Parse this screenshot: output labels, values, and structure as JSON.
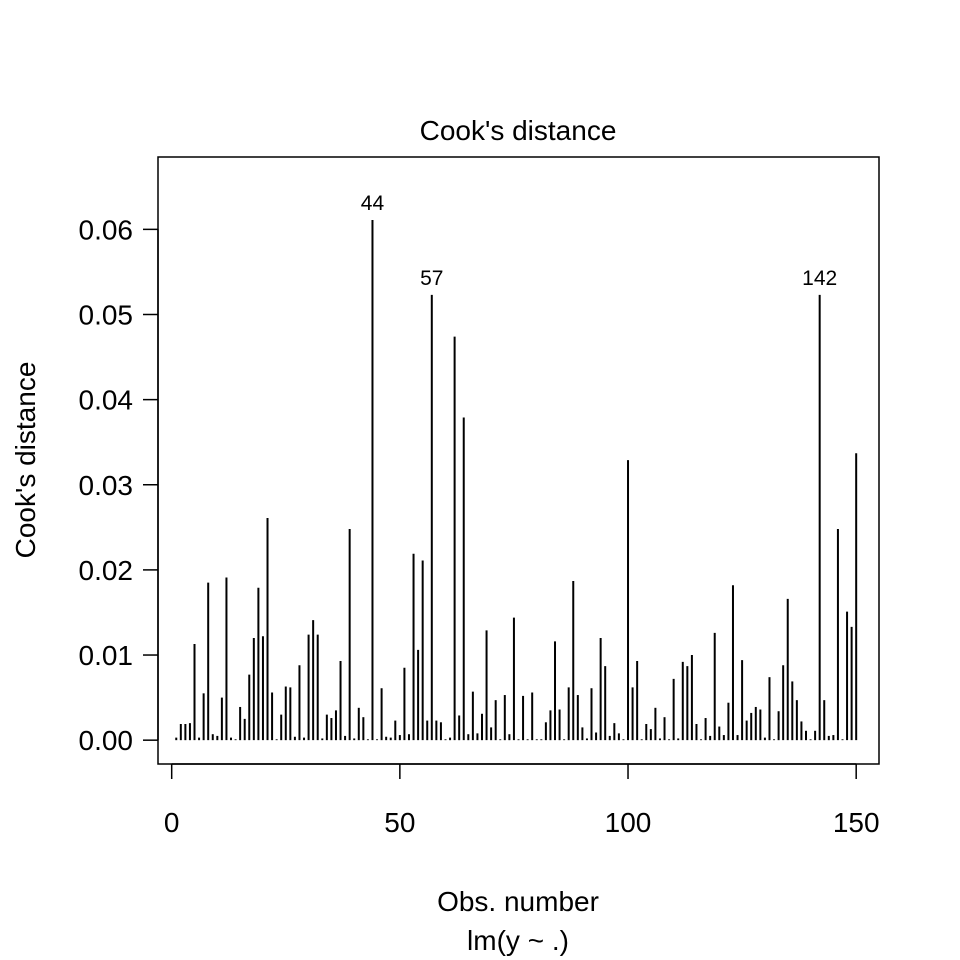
{
  "chart_data": {
    "type": "bar",
    "title": "Cook's distance",
    "xlabel": "Obs. number",
    "subtitle": "lm(y ~ .)",
    "ylabel": "Cook's distance",
    "xlim": [
      -3,
      155
    ],
    "ylim": [
      -0.0028,
      0.0685
    ],
    "x_ticks": [
      0,
      50,
      100,
      150
    ],
    "x_tick_labels": [
      "0",
      "50",
      "100",
      "150"
    ],
    "y_ticks": [
      0.0,
      0.01,
      0.02,
      0.03,
      0.04,
      0.05,
      0.06
    ],
    "y_tick_labels": [
      "0.00",
      "0.01",
      "0.02",
      "0.03",
      "0.04",
      "0.05",
      "0.06"
    ],
    "grid": false,
    "x": [
      1,
      2,
      3,
      4,
      5,
      6,
      7,
      8,
      9,
      10,
      11,
      12,
      13,
      14,
      15,
      16,
      17,
      18,
      19,
      20,
      21,
      22,
      23,
      24,
      25,
      26,
      27,
      28,
      29,
      30,
      31,
      32,
      33,
      34,
      35,
      36,
      37,
      38,
      39,
      40,
      41,
      42,
      43,
      44,
      45,
      46,
      47,
      48,
      49,
      50,
      51,
      52,
      53,
      54,
      55,
      56,
      57,
      58,
      59,
      60,
      61,
      62,
      63,
      64,
      65,
      66,
      67,
      68,
      69,
      70,
      71,
      72,
      73,
      74,
      75,
      76,
      77,
      78,
      79,
      80,
      81,
      82,
      83,
      84,
      85,
      86,
      87,
      88,
      89,
      90,
      91,
      92,
      93,
      94,
      95,
      96,
      97,
      98,
      99,
      100,
      101,
      102,
      103,
      104,
      105,
      106,
      107,
      108,
      109,
      110,
      111,
      112,
      113,
      114,
      115,
      116,
      117,
      118,
      119,
      120,
      121,
      122,
      123,
      124,
      125,
      126,
      127,
      128,
      129,
      130,
      131,
      132,
      133,
      134,
      135,
      136,
      137,
      138,
      139,
      140,
      141,
      142,
      143,
      144,
      145,
      146,
      147,
      148,
      149,
      150
    ],
    "values": [
      0.0003,
      0.0019,
      0.0019,
      0.002,
      0.0113,
      0.0003,
      0.0055,
      0.0185,
      0.0007,
      0.0005,
      0.005,
      0.0191,
      0.0003,
      0.0001,
      0.0039,
      0.0025,
      0.0077,
      0.012,
      0.0179,
      0.0122,
      0.0261,
      0.0056,
      0.0001,
      0.003,
      0.0063,
      0.0062,
      0.0004,
      0.0088,
      0.0003,
      0.0124,
      0.0141,
      0.0124,
      0.0002,
      0.003,
      0.0026,
      0.0035,
      0.0093,
      0.0005,
      0.0248,
      0.0002,
      0.0038,
      0.0027,
      0.0001,
      0.0611,
      0.0001,
      0.0061,
      0.0004,
      0.0003,
      0.0023,
      0.0006,
      0.0085,
      0.0007,
      0.0219,
      0.0106,
      0.0211,
      0.0023,
      0.0523,
      0.0023,
      0.0021,
      0.0001,
      0.0003,
      0.0474,
      0.0029,
      0.0379,
      0.0007,
      0.0057,
      0.0008,
      0.0031,
      0.0129,
      0.0015,
      0.0047,
      0.0001,
      0.0053,
      0.0007,
      0.0144,
      0.0001,
      0.0052,
      0.0001,
      0.0056,
      0.0001,
      0.0001,
      0.0021,
      0.0035,
      0.0116,
      0.0036,
      0.0001,
      0.0062,
      0.0187,
      0.0053,
      0.0015,
      0.0002,
      0.0061,
      0.0009,
      0.012,
      0.0087,
      0.0005,
      0.002,
      0.0008,
      0.0001,
      0.0329,
      0.0062,
      0.0093,
      0.0001,
      0.0019,
      0.0013,
      0.0038,
      0.0002,
      0.0027,
      0.0001,
      0.0072,
      0.0002,
      0.0092,
      0.0087,
      0.01,
      0.0019,
      0.0001,
      0.0026,
      0.0005,
      0.0126,
      0.0016,
      0.0006,
      0.0044,
      0.0182,
      0.0006,
      0.0094,
      0.0023,
      0.0032,
      0.0039,
      0.0036,
      0.0003,
      0.0074,
      0.0001,
      0.0034,
      0.0088,
      0.0166,
      0.0069,
      0.0047,
      0.0022,
      0.0011,
      0.0001,
      0.0011,
      0.0523,
      0.0047,
      0.0005,
      0.0006,
      0.0248,
      0.0001,
      0.0151,
      0.0133,
      0.0337
    ],
    "annotations": [
      {
        "x": 44,
        "y": 0.0611,
        "label": "44"
      },
      {
        "x": 57,
        "y": 0.0523,
        "label": "57"
      },
      {
        "x": 142,
        "y": 0.0523,
        "label": "142"
      }
    ]
  }
}
